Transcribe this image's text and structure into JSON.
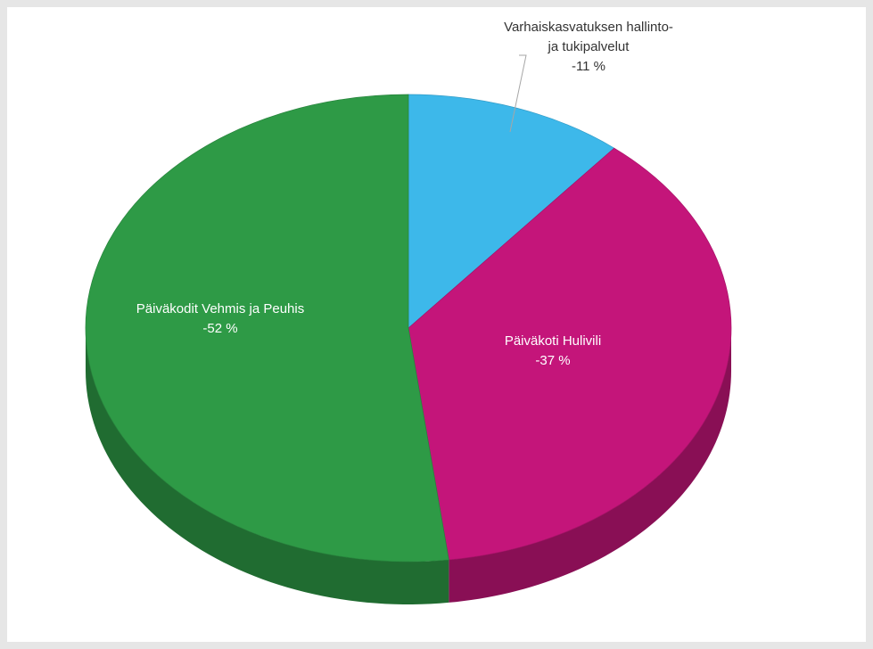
{
  "chart_data": {
    "type": "pie3d",
    "categories": [
      "Varhaiskasvatuksen hallinto- ja tukipalvelut",
      "Päiväkoti Hulivili",
      "Päiväkodit Vehmis ja Peuhis"
    ],
    "values": [
      -11,
      -37,
      -52
    ],
    "value_labels": [
      "-11 %",
      "-37 %",
      "-52 %"
    ],
    "colors": [
      "#3db8ea",
      "#c4157a",
      "#2e9a46"
    ]
  }
}
